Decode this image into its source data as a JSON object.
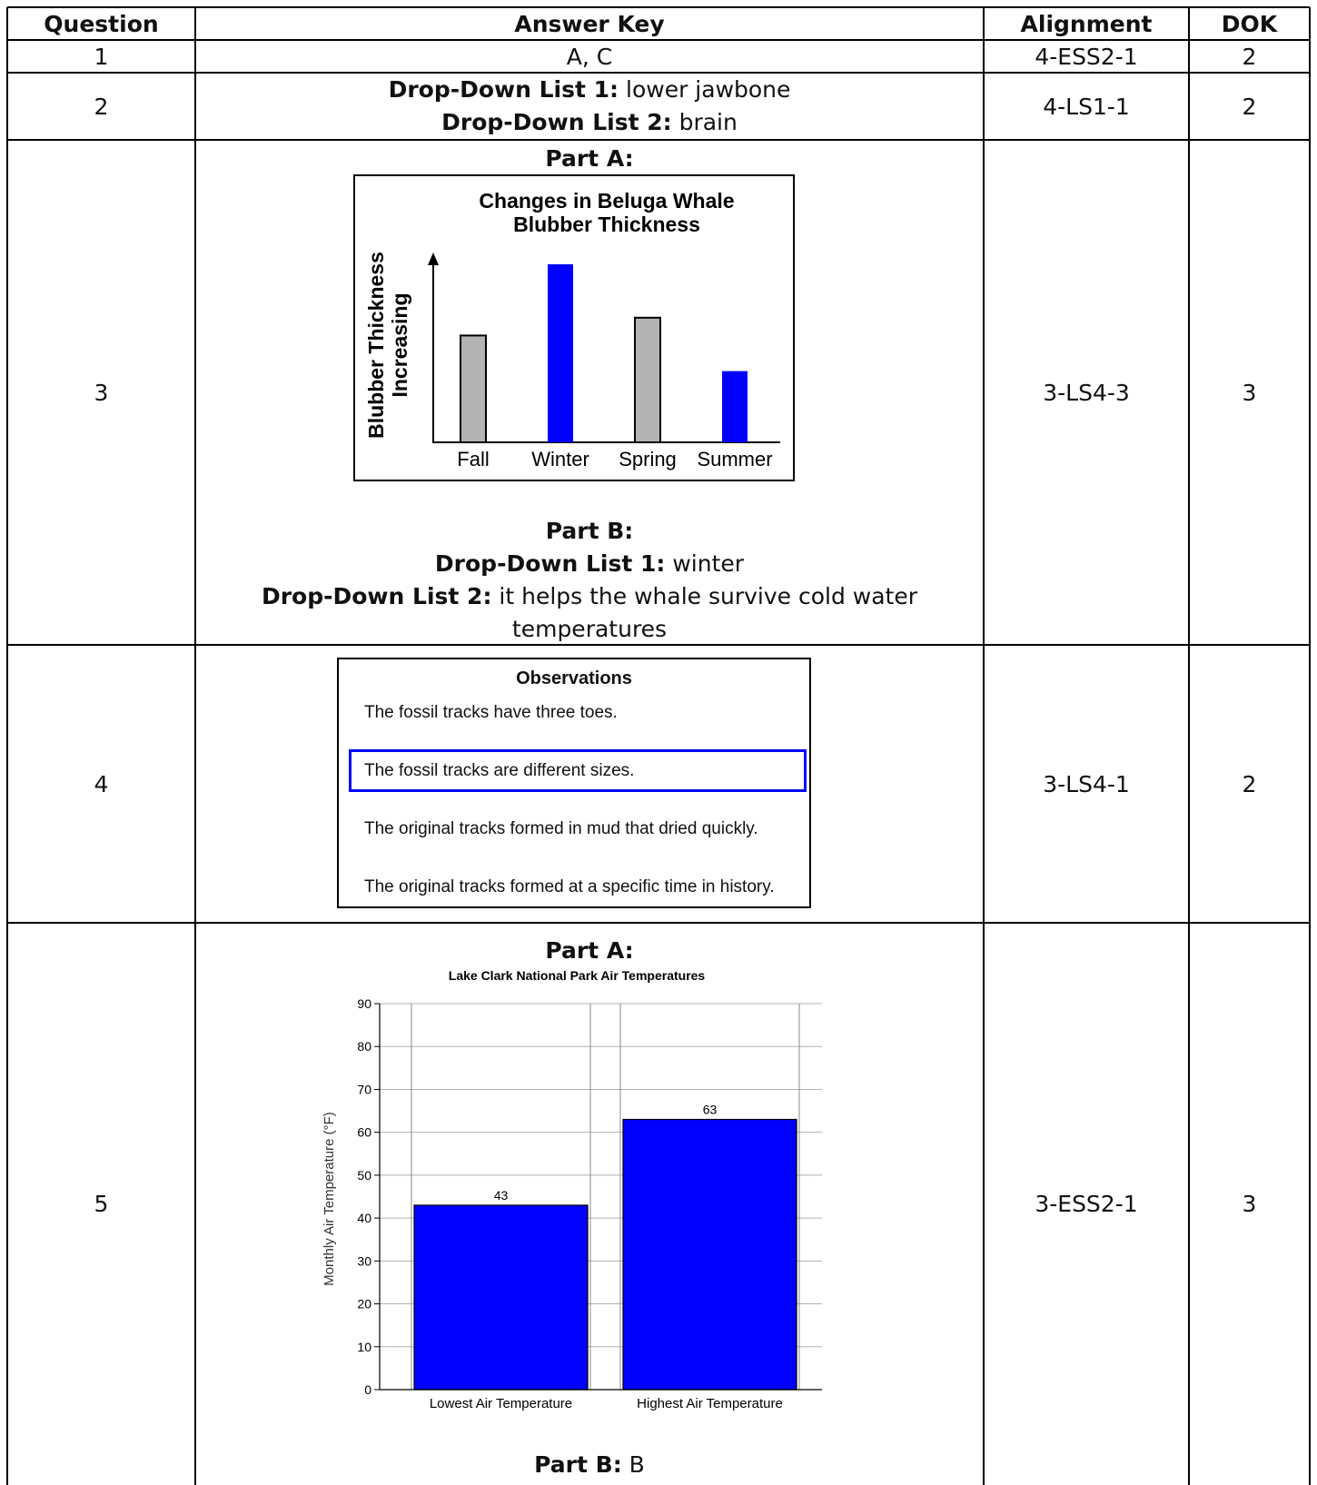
{
  "headers": {
    "question": "Question",
    "answer_key": "Answer Key",
    "alignment": "Alignment",
    "dok": "DOK"
  },
  "rows": [
    {
      "question": "1",
      "answer": "A, C",
      "alignment": "4-ESS2-1",
      "dok": "2"
    },
    {
      "question": "2",
      "dd1_label": "Drop-Down List 1:",
      "dd1_value": " lower jawbone",
      "dd2_label": "Drop-Down List 2:",
      "dd2_value": " brain",
      "alignment": "4-LS1-1",
      "dok": "2"
    },
    {
      "question": "3",
      "part_a": "Part A:",
      "part_b": "Part B:",
      "dd1_label": "Drop-Down List 1:",
      "dd1_value": " winter",
      "dd2_label": "Drop-Down List 2:",
      "dd2_value": " it helps the whale survive cold water",
      "dd2_value_cont": "temperatures",
      "alignment": "3-LS4-3",
      "dok": "3"
    },
    {
      "question": "4",
      "alignment": "3-LS4-1",
      "dok": "2"
    },
    {
      "question": "5",
      "part_a": "Part A:",
      "part_b_label": "Part B:",
      "part_b_value": " B",
      "alignment": "3-ESS2-1",
      "dok": "3"
    }
  ],
  "observations": {
    "title": "Observations",
    "items": [
      "The fossil tracks have three toes.",
      "The fossil tracks are different sizes.",
      "The original tracks formed in mud that dried quickly.",
      "The original tracks formed at a specific time in history."
    ],
    "selected_index": 1,
    "selected_color": "#0000ff"
  },
  "chart_data": [
    {
      "type": "bar",
      "title": "Changes in Beluga Whale Blubber Thickness",
      "title_line1": "Changes in Beluga Whale",
      "title_line2": "Blubber Thickness",
      "ylabel_line1": "Blubber Thickness",
      "ylabel_line2": "Increasing",
      "categories": [
        "Fall",
        "Winter",
        "Spring",
        "Summer"
      ],
      "values": [
        60,
        100,
        70,
        40
      ],
      "colors": [
        "#b3b3b3",
        "#0000ff",
        "#b3b3b3",
        "#0000ff"
      ],
      "ylim": [
        0,
        100
      ],
      "grid": false
    },
    {
      "type": "bar",
      "title": "Lake Clark National Park Air Temperatures",
      "ylabel": "Monthly Air Temperature (°F)",
      "categories": [
        "Lowest Air Temperature",
        "Highest Air Temperature"
      ],
      "values": [
        43,
        63
      ],
      "value_labels": [
        "43",
        "63"
      ],
      "ylim": [
        0,
        90
      ],
      "yticks": [
        "0",
        "10",
        "20",
        "30",
        "40",
        "50",
        "60",
        "70",
        "80",
        "90"
      ],
      "bar_color": "#0000ff",
      "grid": true
    }
  ]
}
